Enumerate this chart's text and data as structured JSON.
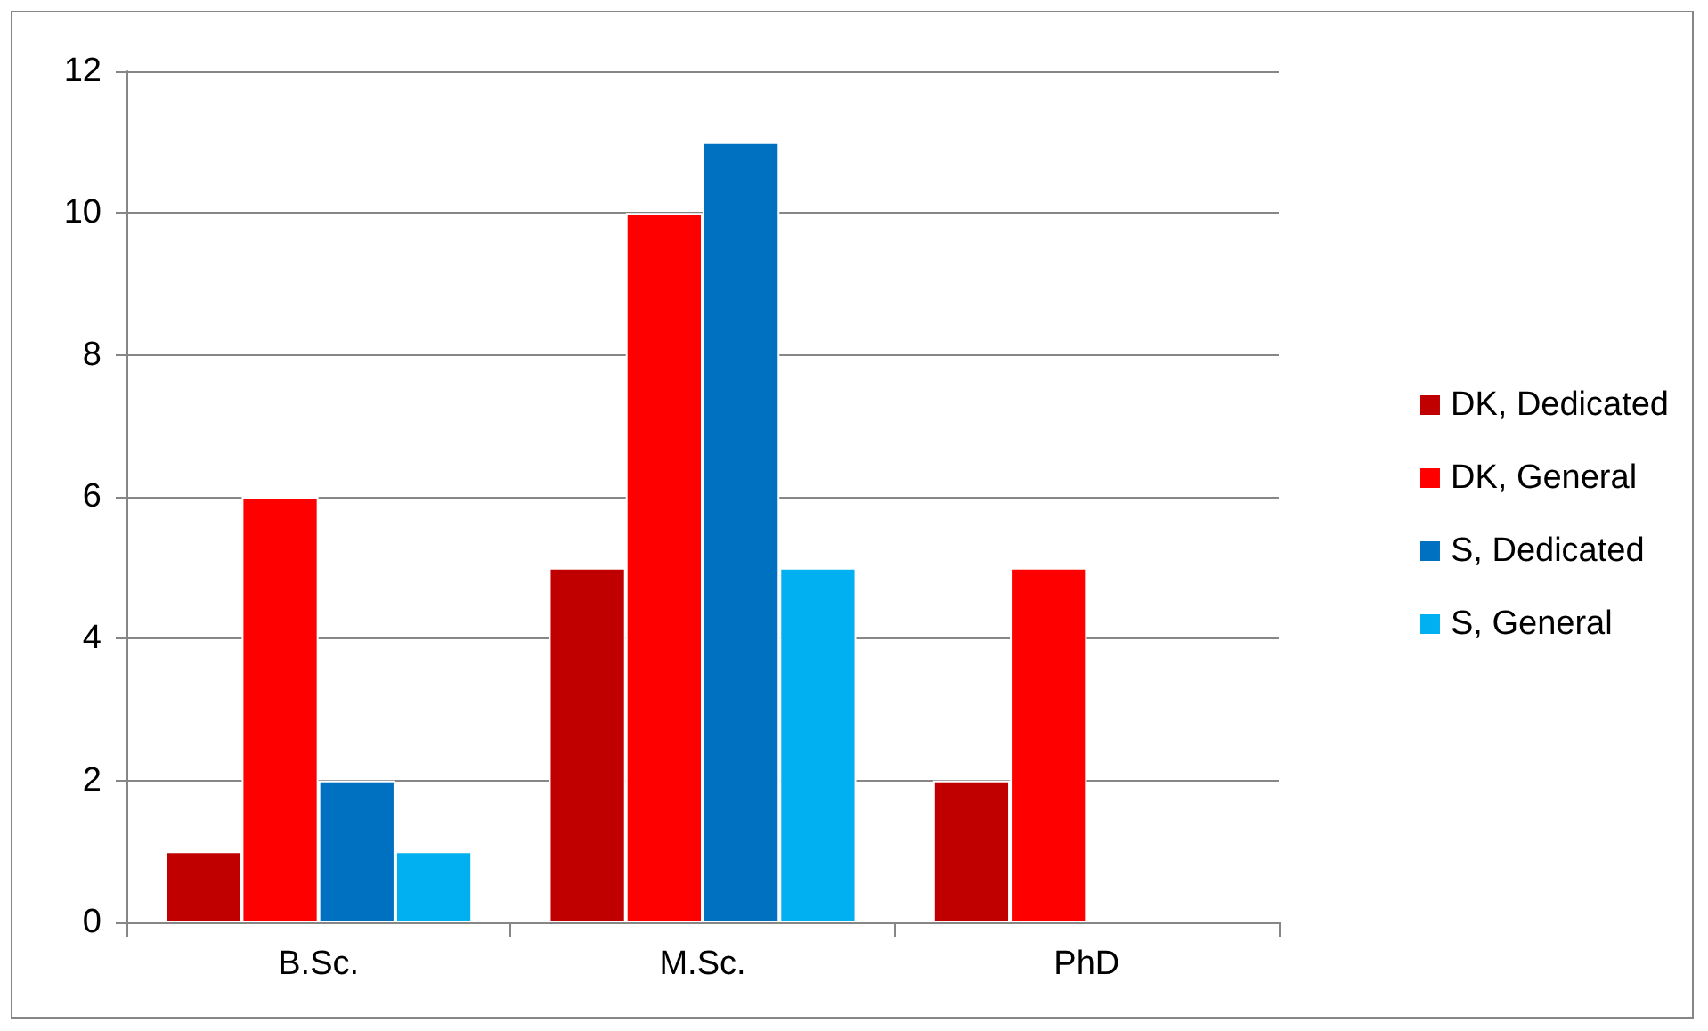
{
  "chart_data": {
    "type": "bar",
    "categories": [
      "B.Sc.",
      "M.Sc.",
      "PhD"
    ],
    "series": [
      {
        "name": "DK, Dedicated",
        "color": "#c00000",
        "values": [
          1,
          5,
          2
        ]
      },
      {
        "name": "DK, General",
        "color": "#ff0000",
        "values": [
          6,
          10,
          5
        ]
      },
      {
        "name": "S, Dedicated",
        "color": "#0070c0",
        "values": [
          2,
          11,
          null
        ]
      },
      {
        "name": "S, General",
        "color": "#00b0f0",
        "values": [
          1,
          5,
          null
        ]
      }
    ],
    "ylim": [
      0,
      12
    ],
    "yticks": [
      0,
      2,
      4,
      6,
      8,
      10,
      12
    ],
    "grid": "y",
    "legend": "right"
  }
}
